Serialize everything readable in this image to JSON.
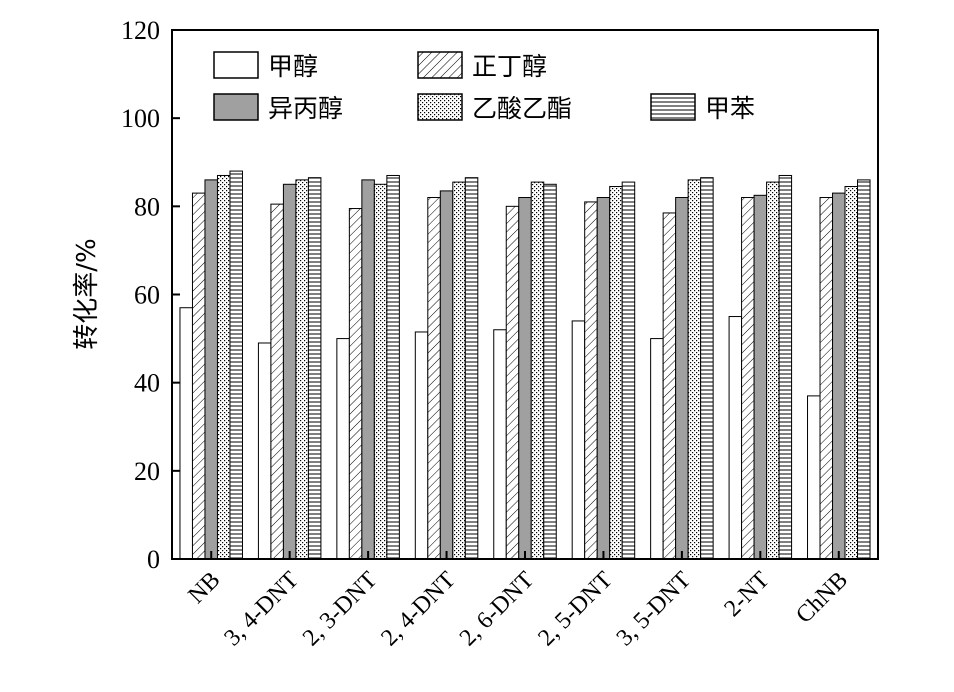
{
  "chart_data": {
    "type": "bar",
    "title": "",
    "xlabel": "",
    "ylabel": "转化率/%",
    "ylim": [
      0,
      120
    ],
    "yticks": [
      0,
      20,
      40,
      60,
      80,
      100,
      120
    ],
    "grid": false,
    "legend_position": "top-left inside",
    "categories": [
      "NB",
      "3, 4-DNT",
      "2, 3-DNT",
      "2, 4-DNT",
      "2, 6-DNT",
      "2, 5-DNT",
      "3, 5-DNT",
      "2-NT",
      "ChNB"
    ],
    "series": [
      {
        "name": "甲醇",
        "pattern": "plain-white",
        "values": [
          57,
          49,
          50,
          51.5,
          52,
          54,
          50,
          55,
          37
        ]
      },
      {
        "name": "正丁醇",
        "pattern": "diagonal-hatch",
        "values": [
          83,
          80.5,
          79.5,
          82,
          80,
          81,
          78.5,
          82,
          82
        ]
      },
      {
        "name": "异丙醇",
        "pattern": "solid-gray",
        "values": [
          86,
          85,
          86,
          83.5,
          82,
          82,
          82,
          82.5,
          83
        ]
      },
      {
        "name": "乙酸乙酯",
        "pattern": "dotted",
        "values": [
          87,
          86,
          85,
          85.5,
          85.5,
          84.5,
          86,
          85.5,
          84.5
        ]
      },
      {
        "name": "甲苯",
        "pattern": "horizontal-lines",
        "values": [
          88,
          86.5,
          87,
          86.5,
          85,
          85.5,
          86.5,
          87,
          86
        ]
      }
    ],
    "colors": {
      "solid_gray": "#a0a0a0",
      "line": "#000000",
      "background": "#ffffff"
    }
  }
}
